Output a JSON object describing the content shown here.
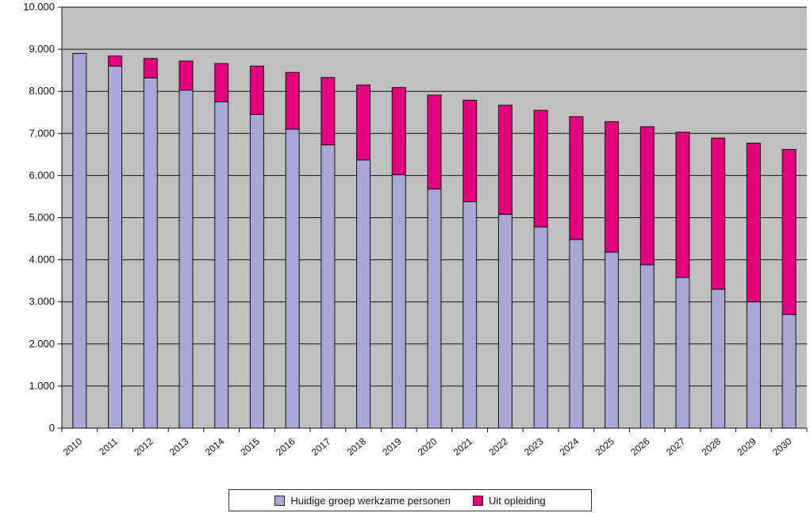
{
  "chart_data": {
    "type": "bar",
    "stacked": true,
    "title": "",
    "xlabel": "",
    "ylabel": "",
    "ylim": [
      0,
      10000
    ],
    "y_ticks": [
      "0",
      "1.000",
      "2.000",
      "3.000",
      "4.000",
      "5.000",
      "6.000",
      "7.000",
      "8.000",
      "9.000",
      "10.000"
    ],
    "y_tick_values": [
      0,
      1000,
      2000,
      3000,
      4000,
      5000,
      6000,
      7000,
      8000,
      9000,
      10000
    ],
    "grid": true,
    "legend_position": "bottom-center",
    "plot_background": "#c0c0c0",
    "categories": [
      "2010",
      "2011",
      "2012",
      "2013",
      "2014",
      "2015",
      "2016",
      "2017",
      "2018",
      "2019",
      "2020",
      "2021",
      "2022",
      "2023",
      "2024",
      "2025",
      "2026",
      "2027",
      "2028",
      "2029",
      "2030"
    ],
    "series": [
      {
        "name": "Huidige groep werkzame personen",
        "color": "#aaa6d6",
        "values": [
          8900,
          8600,
          8320,
          8030,
          7750,
          7450,
          7100,
          6730,
          6370,
          6020,
          5680,
          5380,
          5080,
          4780,
          4480,
          4180,
          3880,
          3580,
          3300,
          3000,
          2700
        ]
      },
      {
        "name": "Uit opleiding",
        "color": "#e5007e",
        "values": [
          0,
          240,
          460,
          690,
          910,
          1150,
          1350,
          1600,
          1780,
          2070,
          2230,
          2410,
          2590,
          2770,
          2920,
          3100,
          3280,
          3450,
          3590,
          3770,
          3920
        ]
      }
    ]
  }
}
